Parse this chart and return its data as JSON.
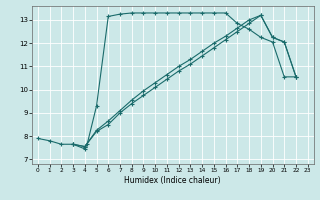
{
  "title": "",
  "xlabel": "Humidex (Indice chaleur)",
  "xlim": [
    -0.5,
    23.5
  ],
  "ylim": [
    6.8,
    13.6
  ],
  "xticks": [
    0,
    1,
    2,
    3,
    4,
    5,
    6,
    7,
    8,
    9,
    10,
    11,
    12,
    13,
    14,
    15,
    16,
    17,
    18,
    19,
    20,
    21,
    22,
    23
  ],
  "yticks": [
    7,
    8,
    9,
    10,
    11,
    12,
    13
  ],
  "bg_color": "#cce8e8",
  "line_color": "#1a6b6b",
  "grid_color": "#ffffff",
  "lines": [
    {
      "x": [
        0,
        1,
        2,
        3,
        4,
        4.2,
        5,
        6,
        7,
        8,
        9,
        10,
        11,
        12,
        13,
        14,
        15,
        16,
        17,
        18,
        19,
        20,
        21,
        22
      ],
      "y": [
        7.9,
        7.8,
        7.65,
        7.65,
        7.45,
        7.65,
        9.3,
        13.15,
        13.25,
        13.3,
        13.3,
        13.3,
        13.3,
        13.3,
        13.3,
        13.3,
        13.3,
        13.3,
        12.85,
        12.6,
        12.25,
        12.05,
        10.55,
        10.55
      ]
    },
    {
      "x": [
        3,
        4,
        5,
        6,
        7,
        8,
        9,
        10,
        11,
        12,
        13,
        14,
        15,
        16,
        17,
        18,
        19,
        20,
        21,
        22
      ],
      "y": [
        7.65,
        7.55,
        8.2,
        8.5,
        9.0,
        9.4,
        9.75,
        10.1,
        10.45,
        10.8,
        11.1,
        11.45,
        11.8,
        12.15,
        12.5,
        12.85,
        13.2,
        12.25,
        12.05,
        10.55
      ]
    },
    {
      "x": [
        3,
        4,
        5,
        6,
        7,
        8,
        9,
        10,
        11,
        12,
        13,
        14,
        15,
        16,
        17,
        18,
        19,
        20,
        21,
        22
      ],
      "y": [
        7.65,
        7.55,
        8.25,
        8.65,
        9.1,
        9.55,
        9.95,
        10.3,
        10.65,
        11.0,
        11.3,
        11.65,
        12.0,
        12.3,
        12.65,
        13.0,
        13.2,
        12.25,
        12.05,
        10.55
      ]
    }
  ]
}
